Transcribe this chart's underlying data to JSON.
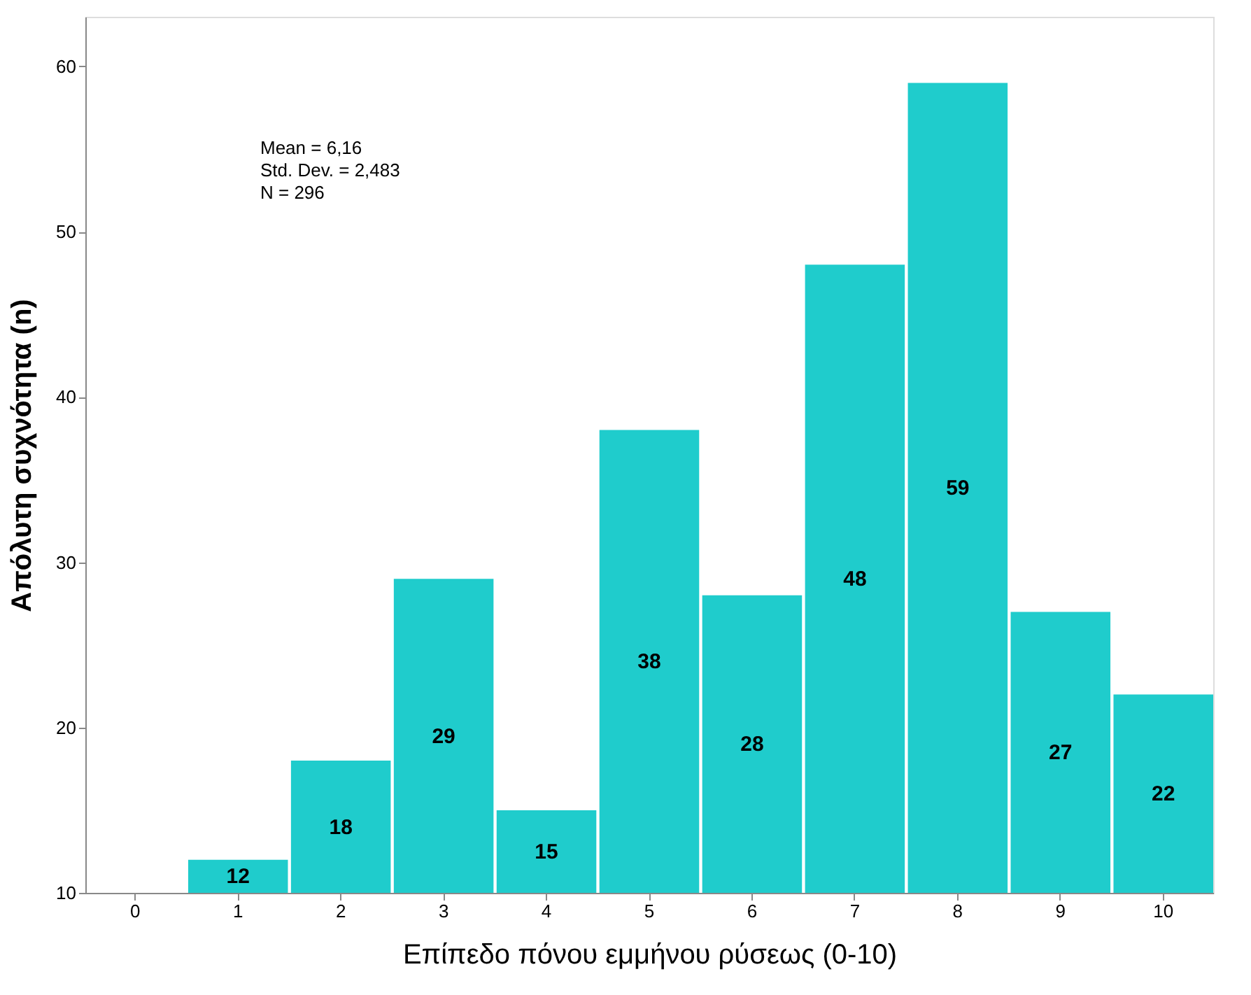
{
  "chart_data": {
    "type": "bar",
    "xlabel": "Επίπεδο πόνου εμμήνου ρύσεως  (0-10)",
    "ylabel": "Απόλυτη συχνότητα (n)",
    "categories": [
      "0",
      "1",
      "2",
      "3",
      "4",
      "5",
      "6",
      "7",
      "8",
      "9",
      "10"
    ],
    "values": [
      null,
      12,
      18,
      29,
      15,
      38,
      28,
      48,
      59,
      27,
      22
    ],
    "color": "#1fcccc",
    "ylim": [
      10,
      63
    ],
    "yticks": [
      10,
      20,
      30,
      40,
      50,
      60
    ],
    "grid": false,
    "data_labels": true,
    "annotations": [
      "Mean = 6,16",
      "Std. Dev. = 2,483",
      "N = 296"
    ]
  }
}
